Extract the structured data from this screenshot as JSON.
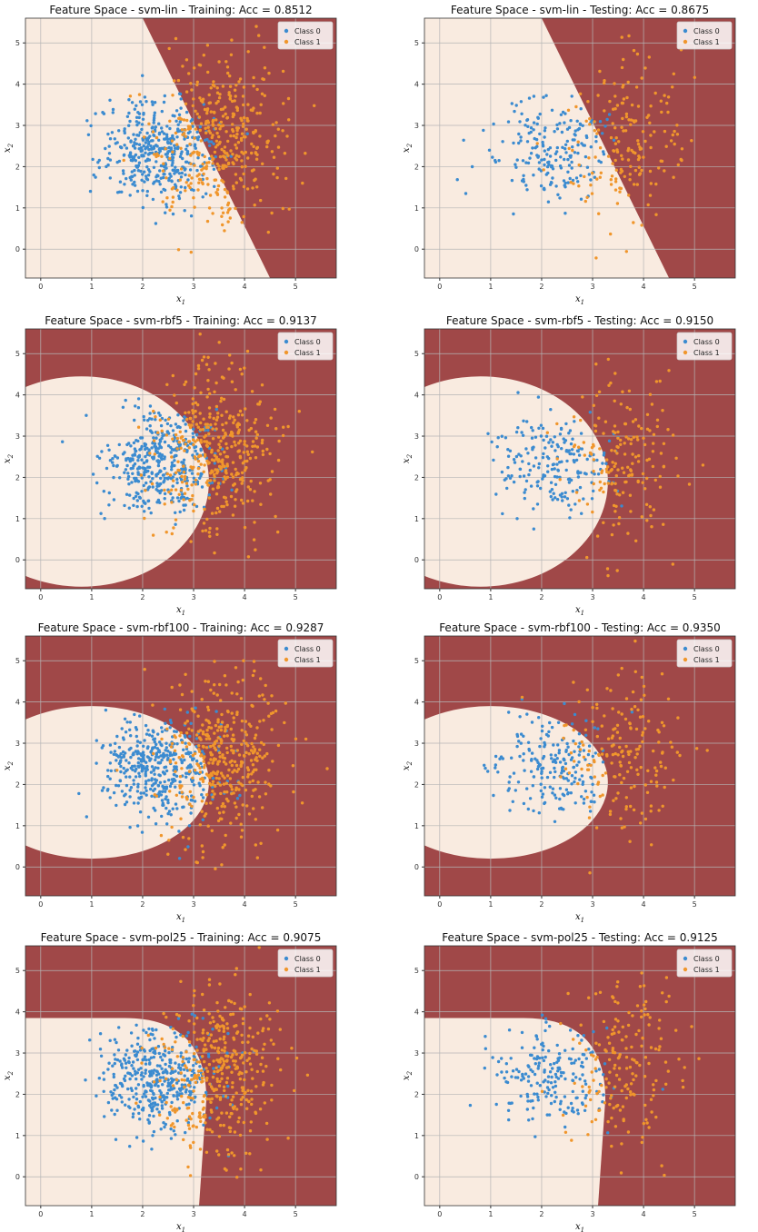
{
  "chart_data": [
    {
      "type": "scatter",
      "title": "Feature Space - svm-lin - Training: Acc = 0.8512",
      "xlabel": "x1",
      "ylabel": "x2",
      "xlim": [
        -0.3,
        5.8
      ],
      "ylim": [
        -0.7,
        5.6
      ],
      "xticks": [
        "0",
        "1",
        "2",
        "3",
        "4",
        "5"
      ],
      "yticks": [
        "0",
        "1",
        "2",
        "3",
        "4",
        "5"
      ],
      "grid": true,
      "legend": "top-right",
      "decision_region": {
        "shape": "linear",
        "boundary_points": [
          [
            2.0,
            5.6
          ],
          [
            4.5,
            -0.7
          ]
        ]
      },
      "colors": {
        "region_class0": "#f9ebe0",
        "region_class1": "#a04848",
        "class0": "#3b8bd0",
        "class1": "#f0962c"
      },
      "series": [
        {
          "name": "Class 0",
          "n": 420,
          "center": [
            2.3,
            2.4
          ],
          "spread": [
            0.55,
            0.6
          ]
        },
        {
          "name": "Class 1",
          "n": 400,
          "center": [
            3.5,
            2.6
          ],
          "spread": [
            0.6,
            1.0
          ]
        }
      ]
    },
    {
      "type": "scatter",
      "title": "Feature Space - svm-lin - Testing: Acc = 0.8675",
      "xlabel": "x1",
      "ylabel": "x2",
      "xlim": [
        -0.3,
        5.8
      ],
      "ylim": [
        -0.7,
        5.6
      ],
      "xticks": [
        "0",
        "1",
        "2",
        "3",
        "4",
        "5"
      ],
      "yticks": [
        "0",
        "1",
        "2",
        "3",
        "4",
        "5"
      ],
      "grid": true,
      "legend": "top-right",
      "decision_region": {
        "shape": "linear",
        "boundary_points": [
          [
            2.0,
            5.6
          ],
          [
            4.5,
            -0.7
          ]
        ]
      },
      "colors": {
        "region_class0": "#f9ebe0",
        "region_class1": "#a04848",
        "class0": "#3b8bd0",
        "class1": "#f0962c"
      },
      "series": [
        {
          "name": "Class 0",
          "n": 200,
          "center": [
            2.2,
            2.4
          ],
          "spread": [
            0.6,
            0.6
          ]
        },
        {
          "name": "Class 1",
          "n": 180,
          "center": [
            3.6,
            2.6
          ],
          "spread": [
            0.55,
            1.0
          ]
        }
      ]
    },
    {
      "type": "scatter",
      "title": "Feature Space - svm-rbf5 - Training: Acc = 0.9137",
      "xlabel": "x1",
      "ylabel": "x2",
      "xlim": [
        -0.3,
        5.8
      ],
      "ylim": [
        -0.7,
        5.6
      ],
      "xticks": [
        "0",
        "1",
        "2",
        "3",
        "4",
        "5"
      ],
      "yticks": [
        "0",
        "1",
        "2",
        "3",
        "4",
        "5"
      ],
      "grid": true,
      "legend": "top-right",
      "decision_region": {
        "shape": "ellipse",
        "center": [
          0.8,
          1.9
        ],
        "radii": [
          2.5,
          2.55
        ]
      },
      "colors": {
        "region_class0": "#f9ebe0",
        "region_class1": "#a04848",
        "class0": "#3b8bd0",
        "class1": "#f0962c"
      },
      "series": [
        {
          "name": "Class 0",
          "n": 420,
          "center": [
            2.3,
            2.4
          ],
          "spread": [
            0.55,
            0.6
          ]
        },
        {
          "name": "Class 1",
          "n": 400,
          "center": [
            3.5,
            2.6
          ],
          "spread": [
            0.6,
            1.0
          ]
        }
      ]
    },
    {
      "type": "scatter",
      "title": "Feature Space - svm-rbf5 - Testing: Acc = 0.9150",
      "xlabel": "x1",
      "ylabel": "x2",
      "xlim": [
        -0.3,
        5.8
      ],
      "ylim": [
        -0.7,
        5.6
      ],
      "xticks": [
        "0",
        "1",
        "2",
        "3",
        "4",
        "5"
      ],
      "yticks": [
        "0",
        "1",
        "2",
        "3",
        "4",
        "5"
      ],
      "grid": true,
      "legend": "top-right",
      "decision_region": {
        "shape": "ellipse",
        "center": [
          0.8,
          1.9
        ],
        "radii": [
          2.5,
          2.55
        ]
      },
      "colors": {
        "region_class0": "#f9ebe0",
        "region_class1": "#a04848",
        "class0": "#3b8bd0",
        "class1": "#f0962c"
      },
      "series": [
        {
          "name": "Class 0",
          "n": 200,
          "center": [
            2.2,
            2.4
          ],
          "spread": [
            0.6,
            0.6
          ]
        },
        {
          "name": "Class 1",
          "n": 180,
          "center": [
            3.6,
            2.6
          ],
          "spread": [
            0.55,
            1.0
          ]
        }
      ]
    },
    {
      "type": "scatter",
      "title": "Feature Space - svm-rbf100 - Training: Acc = 0.9287",
      "xlabel": "x1",
      "ylabel": "x2",
      "xlim": [
        -0.3,
        5.8
      ],
      "ylim": [
        -0.7,
        5.6
      ],
      "xticks": [
        "0",
        "1",
        "2",
        "3",
        "4",
        "5"
      ],
      "yticks": [
        "0",
        "1",
        "2",
        "3",
        "4",
        "5"
      ],
      "grid": true,
      "legend": "top-right",
      "decision_region": {
        "shape": "ellipse",
        "center": [
          1.0,
          2.05
        ],
        "radii": [
          2.3,
          1.85
        ]
      },
      "colors": {
        "region_class0": "#f9ebe0",
        "region_class1": "#a04848",
        "class0": "#3b8bd0",
        "class1": "#f0962c"
      },
      "series": [
        {
          "name": "Class 0",
          "n": 420,
          "center": [
            2.3,
            2.4
          ],
          "spread": [
            0.55,
            0.6
          ]
        },
        {
          "name": "Class 1",
          "n": 400,
          "center": [
            3.5,
            2.6
          ],
          "spread": [
            0.6,
            1.0
          ]
        }
      ]
    },
    {
      "type": "scatter",
      "title": "Feature Space - svm-rbf100 - Testing: Acc = 0.9350",
      "xlabel": "x1",
      "ylabel": "x2",
      "xlim": [
        -0.3,
        5.8
      ],
      "ylim": [
        -0.7,
        5.6
      ],
      "xticks": [
        "0",
        "1",
        "2",
        "3",
        "4",
        "5"
      ],
      "yticks": [
        "0",
        "1",
        "2",
        "3",
        "4",
        "5"
      ],
      "grid": true,
      "legend": "top-right",
      "decision_region": {
        "shape": "ellipse",
        "center": [
          1.0,
          2.05
        ],
        "radii": [
          2.3,
          1.85
        ]
      },
      "colors": {
        "region_class0": "#f9ebe0",
        "region_class1": "#a04848",
        "class0": "#3b8bd0",
        "class1": "#f0962c"
      },
      "series": [
        {
          "name": "Class 0",
          "n": 200,
          "center": [
            2.2,
            2.4
          ],
          "spread": [
            0.6,
            0.6
          ]
        },
        {
          "name": "Class 1",
          "n": 180,
          "center": [
            3.6,
            2.6
          ],
          "spread": [
            0.55,
            1.0
          ]
        }
      ]
    },
    {
      "type": "scatter",
      "title": "Feature Space - svm-pol25 - Training: Acc = 0.9075",
      "xlabel": "x1",
      "ylabel": "x2",
      "xlim": [
        -0.3,
        5.8
      ],
      "ylim": [
        -0.7,
        5.6
      ],
      "xticks": [
        "0",
        "1",
        "2",
        "3",
        "4",
        "5"
      ],
      "yticks": [
        "0",
        "1",
        "2",
        "3",
        "4",
        "5"
      ],
      "grid": true,
      "legend": "top-right",
      "decision_region": {
        "shape": "polynomial",
        "top_y": 3.85,
        "vertical_x": 3.25,
        "corner_radius": 1.6
      },
      "colors": {
        "region_class0": "#f9ebe0",
        "region_class1": "#a04848",
        "class0": "#3b8bd0",
        "class1": "#f0962c"
      },
      "series": [
        {
          "name": "Class 0",
          "n": 420,
          "center": [
            2.3,
            2.4
          ],
          "spread": [
            0.55,
            0.6
          ]
        },
        {
          "name": "Class 1",
          "n": 400,
          "center": [
            3.5,
            2.6
          ],
          "spread": [
            0.6,
            1.0
          ]
        }
      ]
    },
    {
      "type": "scatter",
      "title": "Feature Space - svm-pol25 - Testing: Acc = 0.9125",
      "xlabel": "x1",
      "ylabel": "x2",
      "xlim": [
        -0.3,
        5.8
      ],
      "ylim": [
        -0.7,
        5.6
      ],
      "xticks": [
        "0",
        "1",
        "2",
        "3",
        "4",
        "5"
      ],
      "yticks": [
        "0",
        "1",
        "2",
        "3",
        "4",
        "5"
      ],
      "grid": true,
      "legend": "top-right",
      "decision_region": {
        "shape": "polynomial",
        "top_y": 3.85,
        "vertical_x": 3.25,
        "corner_radius": 1.6
      },
      "colors": {
        "region_class0": "#f9ebe0",
        "region_class1": "#a04848",
        "class0": "#3b8bd0",
        "class1": "#f0962c"
      },
      "series": [
        {
          "name": "Class 0",
          "n": 200,
          "center": [
            2.2,
            2.4
          ],
          "spread": [
            0.6,
            0.6
          ]
        },
        {
          "name": "Class 1",
          "n": 180,
          "center": [
            3.6,
            2.6
          ],
          "spread": [
            0.55,
            1.0
          ]
        }
      ]
    }
  ]
}
